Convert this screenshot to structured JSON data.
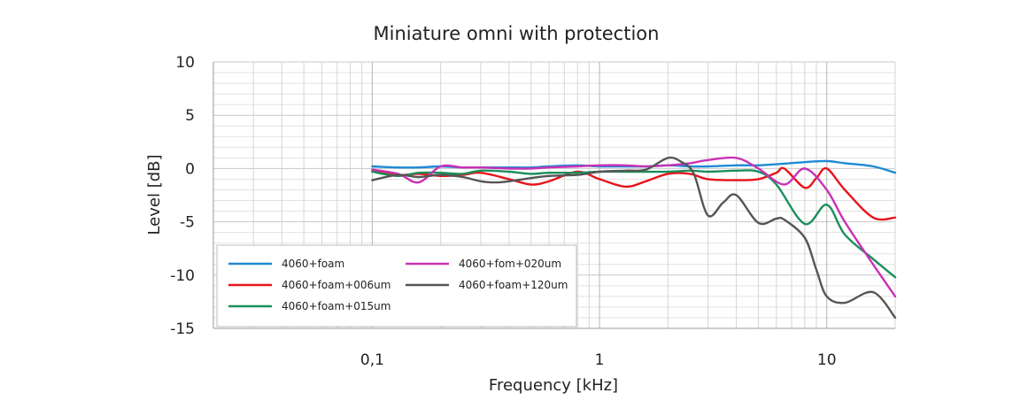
{
  "chart_data": {
    "type": "line",
    "title": "Miniature omni with protection",
    "xlabel": "Frequency [kHz]",
    "ylabel": "Level [dB]",
    "x_scale": "log",
    "xlim": [
      0.02,
      20
    ],
    "ylim": [
      -15,
      10
    ],
    "x_ticks": [
      {
        "value": 0.1,
        "label": "0,1"
      },
      {
        "value": 1,
        "label": "1"
      },
      {
        "value": 10,
        "label": "10"
      }
    ],
    "y_ticks": [
      10,
      5,
      0,
      -5,
      -10,
      -15
    ],
    "grid": true,
    "legend_position": "bottom-left",
    "series": [
      {
        "name": "4060+foam",
        "color": "#1f8ad4",
        "x": [
          0.1,
          0.13,
          0.16,
          0.2,
          0.25,
          0.3,
          0.4,
          0.5,
          0.6,
          0.8,
          1,
          1.3,
          1.6,
          2,
          2.5,
          3,
          4,
          5,
          6,
          8,
          10,
          12,
          16,
          20
        ],
        "y": [
          0.2,
          0.1,
          0.1,
          0.2,
          0.1,
          0.1,
          0.1,
          0.1,
          0.2,
          0.3,
          0.2,
          0.2,
          0.2,
          0.3,
          0.2,
          0.2,
          0.3,
          0.3,
          0.4,
          0.6,
          0.7,
          0.5,
          0.2,
          -0.4
        ]
      },
      {
        "name": "4060+foam+006um",
        "color": "#e8141b",
        "x": [
          0.1,
          0.13,
          0.16,
          0.2,
          0.25,
          0.3,
          0.4,
          0.5,
          0.6,
          0.8,
          1,
          1.3,
          1.6,
          2,
          2.5,
          3,
          4,
          5,
          6,
          6.5,
          8,
          9,
          10,
          12,
          16,
          20
        ],
        "y": [
          -0.2,
          -0.6,
          -0.5,
          -0.7,
          -0.6,
          -0.4,
          -1.0,
          -1.5,
          -1.2,
          -0.3,
          -1.0,
          -1.7,
          -1.2,
          -0.5,
          -0.5,
          -1.0,
          -1.1,
          -1.0,
          -0.4,
          0.0,
          -1.8,
          -0.9,
          0.0,
          -2.0,
          -4.6,
          -4.6
        ]
      },
      {
        "name": "4060+foam+015um",
        "color": "#1a8f5c",
        "x": [
          0.1,
          0.13,
          0.16,
          0.2,
          0.25,
          0.3,
          0.4,
          0.5,
          0.6,
          0.8,
          1,
          1.3,
          1.6,
          2,
          2.5,
          3,
          4,
          5,
          6,
          8,
          10,
          12,
          16,
          20
        ],
        "y": [
          -0.3,
          -0.7,
          -0.4,
          -0.4,
          -0.5,
          -0.2,
          -0.3,
          -0.5,
          -0.4,
          -0.4,
          -0.3,
          -0.3,
          -0.3,
          -0.3,
          -0.2,
          -0.3,
          -0.2,
          -0.3,
          -1.5,
          -5.2,
          -3.4,
          -6.2,
          -8.5,
          -10.2
        ]
      },
      {
        "name": "4060+fom+020um",
        "color": "#c832b4",
        "x": [
          0.1,
          0.13,
          0.16,
          0.2,
          0.25,
          0.3,
          0.4,
          0.5,
          0.6,
          0.8,
          1,
          1.3,
          1.6,
          2,
          2.5,
          3,
          4,
          5,
          6.5,
          8,
          10,
          12,
          16,
          20
        ],
        "y": [
          -0.1,
          -0.5,
          -1.3,
          0.2,
          0.1,
          0.1,
          0.0,
          0.0,
          0.1,
          0.2,
          0.3,
          0.3,
          0.2,
          0.3,
          0.5,
          0.8,
          1.0,
          0.0,
          -1.5,
          0.0,
          -2.0,
          -5.0,
          -9.0,
          -12.0
        ]
      },
      {
        "name": "4060+foam+120um",
        "color": "#555555",
        "x": [
          0.1,
          0.13,
          0.16,
          0.2,
          0.25,
          0.3,
          0.35,
          0.4,
          0.5,
          0.6,
          0.8,
          1,
          1.3,
          1.6,
          2,
          2.3,
          2.6,
          3,
          3.5,
          4,
          5,
          6,
          6.5,
          8,
          9,
          10,
          12,
          16,
          20
        ],
        "y": [
          -1.1,
          -0.6,
          -0.8,
          -0.6,
          -0.8,
          -1.2,
          -1.3,
          -1.2,
          -0.9,
          -0.7,
          -0.6,
          -0.3,
          -0.2,
          -0.1,
          1.0,
          0.6,
          -0.5,
          -4.4,
          -3.2,
          -2.5,
          -5.1,
          -4.7,
          -4.8,
          -6.5,
          -9.5,
          -12.0,
          -12.6,
          -11.6,
          -14.0
        ]
      }
    ]
  }
}
